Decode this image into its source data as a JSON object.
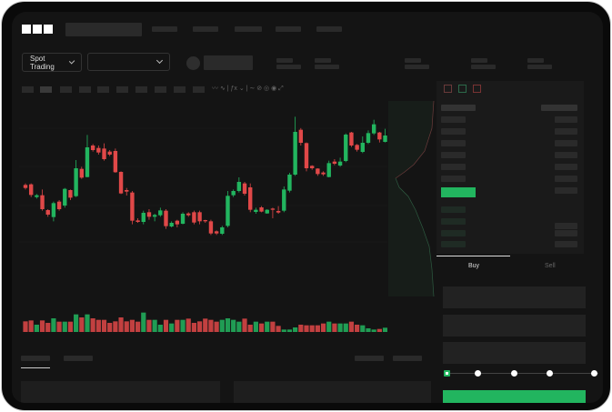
{
  "header": {
    "logo": "OKX"
  },
  "controls": {
    "market_select": "Spot Trading"
  },
  "order_form": {
    "tabs": [
      "Buy",
      "Sell"
    ],
    "active_tab": "Buy",
    "slider_level": 0
  },
  "colors": {
    "up": "#22b55f",
    "down": "#e04848",
    "background": "#141414",
    "panel": "#1a1a1a"
  },
  "icons": [
    "order-book-both-icon",
    "order-book-bids-icon",
    "order-book-asks-icon",
    "chevron-down-icon",
    "indicator-icon",
    "draw-icon"
  ],
  "chart_data": {
    "type": "candlestick",
    "candles": [
      [
        50,
        48,
        51,
        47
      ],
      [
        50.4,
        43.4,
        51,
        42
      ],
      [
        42,
        43.2,
        44,
        41
      ],
      [
        43.2,
        34,
        47,
        33
      ],
      [
        33.4,
        30.4,
        34,
        29
      ],
      [
        28.8,
        38,
        39,
        26
      ],
      [
        39,
        34,
        40,
        33
      ],
      [
        36.4,
        47.4,
        48,
        35
      ],
      [
        46.6,
        41.6,
        47,
        40
      ],
      [
        42.6,
        61,
        66.4,
        42
      ],
      [
        60.6,
        54.8,
        62,
        54
      ],
      [
        55.2,
        74.8,
        83,
        55
      ],
      [
        76,
        73,
        77,
        72
      ],
      [
        74.4,
        71.4,
        76,
        70
      ],
      [
        74,
        67,
        77.4,
        66
      ],
      [
        72,
        70,
        73,
        69
      ],
      [
        72.4,
        58.4,
        74,
        58
      ],
      [
        58.6,
        44.4,
        59,
        44
      ],
      [
        46.6,
        45.6,
        48,
        43
      ],
      [
        45,
        26.4,
        46,
        24
      ],
      [
        26.6,
        25.6,
        28,
        25
      ],
      [
        25.6,
        31.6,
        33,
        24
      ],
      [
        32,
        29,
        34,
        27
      ],
      [
        29,
        30.2,
        31,
        26
      ],
      [
        30,
        33.2,
        35,
        29
      ],
      [
        33,
        22.8,
        34,
        21
      ],
      [
        22.6,
        25,
        26,
        22
      ],
      [
        26.4,
        24,
        27,
        22
      ],
      [
        24.4,
        31,
        32,
        24
      ],
      [
        31.2,
        30,
        32,
        29
      ],
      [
        32,
        25.2,
        33,
        24
      ],
      [
        32,
        26,
        33,
        24
      ],
      [
        26.8,
        26,
        27,
        25
      ],
      [
        26,
        18,
        27,
        17
      ],
      [
        19.4,
        18,
        20,
        17
      ],
      [
        17.8,
        22,
        23,
        17
      ],
      [
        23,
        42.8,
        46,
        22
      ],
      [
        43.2,
        46,
        47,
        42
      ],
      [
        46,
        52,
        55,
        45
      ],
      [
        51,
        44.2,
        52,
        43
      ],
      [
        48.4,
        33.6,
        51,
        32
      ],
      [
        32.2,
        33.6,
        35,
        31
      ],
      [
        35.2,
        32.4,
        36,
        32
      ],
      [
        31.2,
        33.6,
        34,
        31
      ],
      [
        34.4,
        33.6,
        35,
        28
      ],
      [
        32.8,
        31.8,
        36,
        31
      ],
      [
        33,
        47,
        49,
        32
      ],
      [
        46.2,
        56.8,
        58,
        45
      ],
      [
        56.8,
        85,
        95,
        56
      ],
      [
        86.4,
        77.8,
        87.5,
        76
      ],
      [
        77.6,
        61,
        78,
        59
      ],
      [
        62.6,
        61,
        63,
        60
      ],
      [
        60.8,
        57.2,
        61,
        56
      ],
      [
        58.2,
        57,
        59,
        56
      ],
      [
        55.2,
        64.4,
        66,
        55
      ],
      [
        65.4,
        64,
        67,
        63
      ],
      [
        62.8,
        65.4,
        68,
        62
      ],
      [
        65.8,
        83.2,
        84,
        65
      ],
      [
        84.6,
        76,
        85,
        75
      ],
      [
        76.4,
        73.2,
        77,
        72
      ],
      [
        71.8,
        77.8,
        82,
        71
      ],
      [
        77.8,
        84.2,
        86,
        77
      ],
      [
        84,
        90,
        93,
        83
      ],
      [
        84.6,
        80,
        85,
        78
      ],
      [
        78.4,
        82.6,
        87,
        78
      ]
    ],
    "volume": [
      35,
      38,
      24,
      38,
      30,
      45,
      34,
      34,
      34,
      58,
      48,
      58,
      45,
      40,
      40,
      30,
      35,
      48,
      35,
      40,
      34,
      64,
      40,
      40,
      24,
      40,
      28,
      40,
      40,
      44,
      30,
      35,
      44,
      40,
      34,
      40,
      45,
      40,
      34,
      44,
      24,
      34,
      28,
      34,
      34,
      20,
      8,
      8,
      15,
      24,
      22,
      22,
      22,
      28,
      34,
      28,
      28,
      28,
      34,
      24,
      22,
      12,
      8,
      10,
      14
    ]
  }
}
